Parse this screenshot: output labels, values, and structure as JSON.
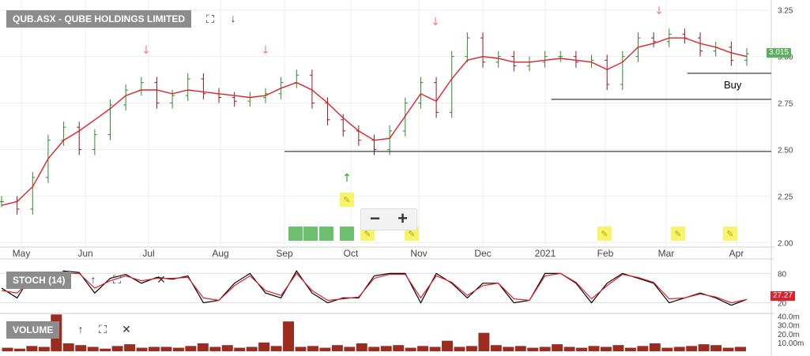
{
  "symbol_title": "QUB.ASX - QUBE HOLDINGS LIMITED",
  "panels": {
    "stoch_label": "STOCH (14)",
    "volume_label": "VOLUME"
  },
  "price_tag": "3.015",
  "stoch_tag": "27.27",
  "buy_label": "Buy",
  "icons": {
    "maximize": "expand-icon",
    "down": "arrow-down-icon",
    "up": "arrow-up-icon",
    "close": "close-icon",
    "zoom_out": "minus-icon",
    "zoom_in": "plus-icon"
  },
  "colors": {
    "price_bar": "#2c8a2c",
    "price_bar_down": "#8b1a1a",
    "ma": "#e0202a",
    "stoch_k": "#000000",
    "stoch_d": "#e0202a",
    "volume": "#9b2c1f",
    "marker_down": "#f08080",
    "marker_up": "#22aa22",
    "pencil_bg": "#f7f36b",
    "label_bg": "#8c8c8c"
  },
  "chart_data": {
    "type": "line",
    "x_tick_labels": [
      "May",
      "Jun",
      "Jul",
      "Aug",
      "Sep",
      "Oct",
      "Nov",
      "Dec",
      "2021",
      "Feb",
      "Mar",
      "Apr"
    ],
    "price_axis_ticks": [
      "2.00",
      "2.25",
      "2.50",
      "2.75",
      "3.00",
      "3.25"
    ],
    "price_ylim": [
      1.98,
      3.27
    ],
    "last_price": 3.015,
    "price_series": [
      {
        "m": "Apr",
        "v": 2.22
      },
      {
        "m": "Apr",
        "v": 2.18
      },
      {
        "m": "May",
        "v": 2.35
      },
      {
        "m": "May",
        "v": 2.55
      },
      {
        "m": "May",
        "v": 2.62
      },
      {
        "m": "May",
        "v": 2.5
      },
      {
        "m": "May",
        "v": 2.58
      },
      {
        "m": "May",
        "v": 2.74
      },
      {
        "m": "Jun",
        "v": 2.82
      },
      {
        "m": "Jun",
        "v": 2.86
      },
      {
        "m": "Jun",
        "v": 2.75
      },
      {
        "m": "Jun",
        "v": 2.79
      },
      {
        "m": "Jul",
        "v": 2.88
      },
      {
        "m": "Jul",
        "v": 2.8
      },
      {
        "m": "Jul",
        "v": 2.78
      },
      {
        "m": "Jul",
        "v": 2.76
      },
      {
        "m": "Aug",
        "v": 2.78
      },
      {
        "m": "Aug",
        "v": 2.8
      },
      {
        "m": "Aug",
        "v": 2.86
      },
      {
        "m": "Aug",
        "v": 2.9
      },
      {
        "m": "Sep",
        "v": 2.75
      },
      {
        "m": "Sep",
        "v": 2.66
      },
      {
        "m": "Sep",
        "v": 2.6
      },
      {
        "m": "Sep",
        "v": 2.55
      },
      {
        "m": "Oct",
        "v": 2.5
      },
      {
        "m": "Oct",
        "v": 2.6
      },
      {
        "m": "Oct",
        "v": 2.75
      },
      {
        "m": "Oct",
        "v": 2.86
      },
      {
        "m": "Nov",
        "v": 2.7
      },
      {
        "m": "Nov",
        "v": 3.0
      },
      {
        "m": "Nov",
        "v": 3.1
      },
      {
        "m": "Nov",
        "v": 2.97
      },
      {
        "m": "Dec",
        "v": 3.0
      },
      {
        "m": "Dec",
        "v": 2.95
      },
      {
        "m": "Dec",
        "v": 2.97
      },
      {
        "m": "Dec",
        "v": 3.0
      },
      {
        "m": "Jan",
        "v": 3.0
      },
      {
        "m": "Jan",
        "v": 2.97
      },
      {
        "m": "Jan",
        "v": 2.98
      },
      {
        "m": "Jan",
        "v": 2.85
      },
      {
        "m": "Feb",
        "v": 3.0
      },
      {
        "m": "Feb",
        "v": 3.1
      },
      {
        "m": "Feb",
        "v": 3.08
      },
      {
        "m": "Feb",
        "v": 3.12
      },
      {
        "m": "Mar",
        "v": 3.1
      },
      {
        "m": "Mar",
        "v": 3.03
      },
      {
        "m": "Mar",
        "v": 3.05
      },
      {
        "m": "Mar",
        "v": 2.98
      },
      {
        "m": "Apr",
        "v": 3.015
      }
    ],
    "moving_average": [
      2.2,
      2.22,
      2.3,
      2.45,
      2.55,
      2.6,
      2.66,
      2.72,
      2.79,
      2.82,
      2.82,
      2.8,
      2.82,
      2.81,
      2.8,
      2.79,
      2.78,
      2.79,
      2.83,
      2.86,
      2.82,
      2.75,
      2.67,
      2.6,
      2.55,
      2.56,
      2.68,
      2.8,
      2.76,
      2.88,
      2.98,
      3.0,
      2.99,
      2.97,
      2.97,
      2.98,
      2.99,
      2.98,
      2.97,
      2.93,
      2.97,
      3.05,
      3.07,
      3.1,
      3.1,
      3.07,
      3.05,
      3.02,
      3.0
    ],
    "horizontal_lines": [
      {
        "value": 2.49,
        "from_month_index": 4
      },
      {
        "value": 2.77,
        "from_month_index": 8.1
      },
      {
        "value": 2.91,
        "from_month_index": 10.3
      }
    ],
    "stoch": {
      "axis_ticks": [
        "20",
        "80"
      ],
      "ylim": [
        0,
        100
      ],
      "k": [
        50,
        30,
        80,
        60,
        85,
        82,
        40,
        70,
        78,
        60,
        72,
        68,
        75,
        20,
        25,
        60,
        80,
        40,
        30,
        85,
        40,
        20,
        30,
        30,
        75,
        80,
        80,
        20,
        80,
        60,
        30,
        60,
        60,
        20,
        25,
        80,
        80,
        60,
        20,
        60,
        80,
        70,
        60,
        20,
        30,
        40,
        30,
        15,
        27
      ],
      "d": [
        45,
        40,
        70,
        65,
        80,
        80,
        50,
        65,
        75,
        65,
        70,
        70,
        72,
        30,
        25,
        55,
        75,
        45,
        35,
        80,
        45,
        25,
        28,
        32,
        70,
        78,
        78,
        30,
        75,
        62,
        35,
        55,
        60,
        28,
        25,
        75,
        80,
        62,
        28,
        55,
        78,
        72,
        62,
        28,
        30,
        38,
        32,
        20,
        27
      ],
      "last": 27.27
    },
    "volume": {
      "axis_ticks": [
        "10.00m",
        "20.0m",
        "30.0m",
        "40.0m"
      ],
      "ylim": [
        0,
        45
      ],
      "values": [
        4,
        3,
        6,
        5,
        42,
        9,
        7,
        5,
        3,
        6,
        8,
        4,
        5,
        5,
        4,
        6,
        9,
        5,
        7,
        4,
        5,
        10,
        6,
        34,
        5,
        6,
        4,
        7,
        5,
        9,
        5,
        6,
        7,
        4,
        6,
        5,
        12,
        5,
        6,
        21,
        7,
        5,
        6,
        4,
        5,
        8,
        5,
        4,
        6,
        5,
        7,
        4,
        6,
        9,
        4,
        5,
        6,
        8,
        7,
        4,
        5
      ]
    }
  }
}
